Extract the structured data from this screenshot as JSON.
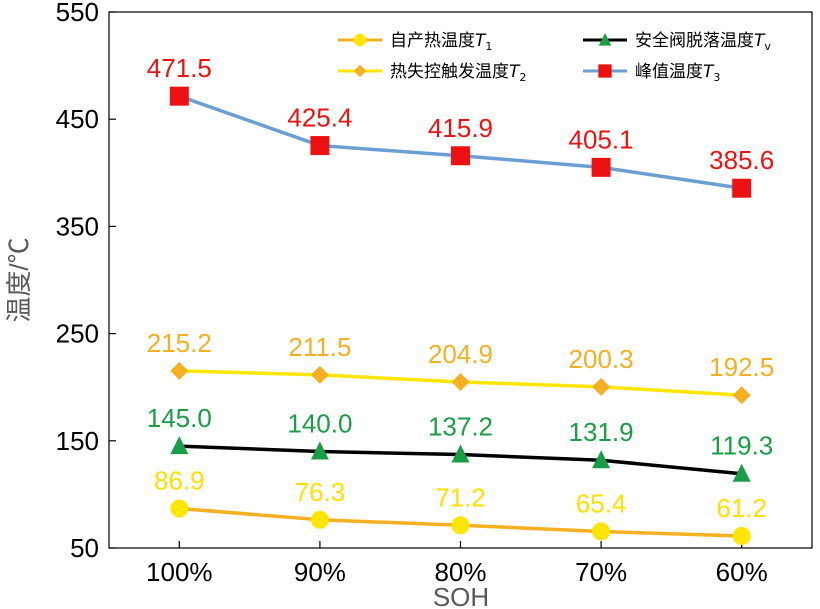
{
  "chart_data": {
    "type": "line",
    "xlabel": "SOH",
    "ylabel": "温度/℃",
    "categories": [
      "100%",
      "90%",
      "80%",
      "70%",
      "60%"
    ],
    "ylim": [
      50,
      550
    ],
    "yticks": [
      50,
      150,
      250,
      350,
      450,
      550
    ],
    "grid": false,
    "legend_position": "top",
    "series": [
      {
        "name": "自产热温度T1",
        "name_parts": {
          "text": "自产热温度",
          "var": "T",
          "sub": "1"
        },
        "values": [
          86.9,
          76.3,
          71.2,
          65.4,
          61.2
        ],
        "labels": [
          "86.9",
          "76.3",
          "71.2",
          "65.4",
          "61.2"
        ],
        "line_color": "#F4B020",
        "marker": "circle",
        "marker_color": "#FFE600",
        "label_color": "#FFE000"
      },
      {
        "name": "热失控触发温度T2",
        "name_parts": {
          "text": "热失控触发温度",
          "var": "T",
          "sub": "2"
        },
        "values": [
          215.2,
          211.5,
          204.9,
          200.3,
          192.5
        ],
        "labels": [
          "215.2",
          "211.5",
          "204.9",
          "200.3",
          "192.5"
        ],
        "line_color": "#FFE600",
        "marker": "diamond",
        "marker_color": "#F4B020",
        "label_color": "#F4B020"
      },
      {
        "name": "安全阀脱落温度Tv",
        "name_parts": {
          "text": "安全阀脱落温度",
          "var": "T",
          "sub": "v"
        },
        "values": [
          145.0,
          140.0,
          137.2,
          131.9,
          119.3
        ],
        "labels": [
          "145.0",
          "140.0",
          "137.2",
          "131.9",
          "119.3"
        ],
        "line_color": "#000000",
        "marker": "triangle",
        "marker_color": "#1A9E45",
        "label_color": "#1A9E45"
      },
      {
        "name": "峰值温度T3",
        "name_parts": {
          "text": "峰值温度",
          "var": "T",
          "sub": "3"
        },
        "values": [
          471.5,
          425.4,
          415.9,
          405.1,
          385.6
        ],
        "labels": [
          "471.5",
          "425.4",
          "415.9",
          "405.1",
          "385.6"
        ],
        "line_color": "#6A9FD4",
        "marker": "square",
        "marker_color": "#EE1111",
        "label_color": "#EE1111"
      }
    ],
    "legend_order": [
      0,
      2,
      1,
      3
    ]
  }
}
